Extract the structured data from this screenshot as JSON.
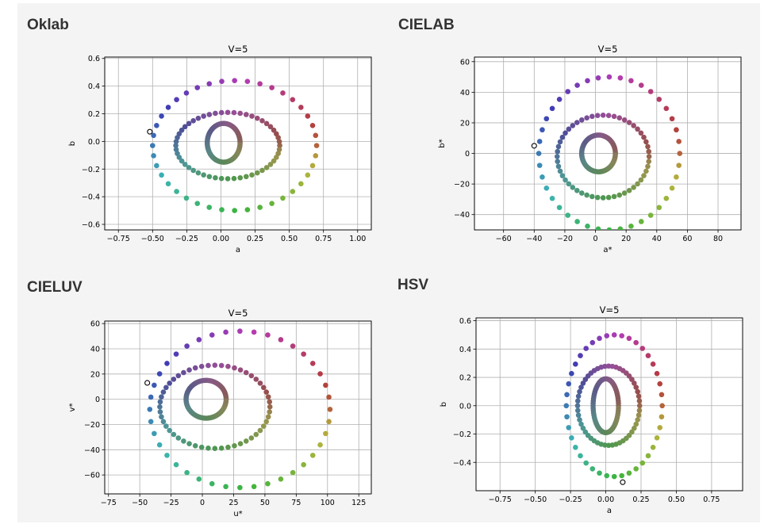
{
  "panel_titles": [
    "Oklab",
    "CIELAB",
    "CIELUV",
    "HSV"
  ],
  "chart_data": [
    {
      "type": "scatter",
      "title": "V=5",
      "xlabel": "a",
      "ylabel": "b",
      "xlim": [
        -0.85,
        1.1
      ],
      "ylim": [
        -0.64,
        0.61
      ],
      "xticks": [
        -0.75,
        -0.5,
        -0.25,
        0.0,
        0.25,
        0.5,
        0.75,
        1.0
      ],
      "xtick_labels": [
        "−0.75",
        "−0.50",
        "−0.25",
        "0.00",
        "0.25",
        "0.50",
        "0.75",
        "1.00"
      ],
      "yticks": [
        -0.6,
        -0.4,
        -0.2,
        0.0,
        0.2,
        0.4,
        0.6
      ],
      "ytick_labels": [
        "−0.6",
        "−0.4",
        "−0.2",
        "0.0",
        "0.2",
        "0.4",
        "0.6"
      ],
      "grid": true,
      "rings": [
        {
          "name": "inner",
          "center": [
            0.02,
            -0.01
          ],
          "radius_x": 0.12,
          "radius_y": 0.14,
          "count": 70
        },
        {
          "name": "middle",
          "center": [
            0.05,
            -0.03
          ],
          "radius_x": 0.38,
          "radius_y": 0.24,
          "count": 52
        },
        {
          "name": "outer",
          "center": [
            0.1,
            -0.03
          ],
          "radius_x": 0.6,
          "radius_y": 0.47,
          "count": 40
        }
      ],
      "highlight_point": [
        -0.52,
        0.07
      ]
    },
    {
      "type": "scatter",
      "title": "V=5",
      "xlabel": "a*",
      "ylabel": "b*",
      "xlim": [
        -79,
        95
      ],
      "ylim": [
        -50,
        63
      ],
      "xticks": [
        -60,
        -40,
        -20,
        0,
        20,
        40,
        60,
        80
      ],
      "xtick_labels": [
        "−60",
        "−40",
        "−20",
        "0",
        "20",
        "40",
        "60",
        "80"
      ],
      "yticks": [
        -40,
        -20,
        0,
        20,
        40,
        60
      ],
      "ytick_labels": [
        "−40",
        "−20",
        "0",
        "20",
        "40",
        "60"
      ],
      "grid": true,
      "rings": [
        {
          "name": "inner",
          "center": [
            2,
            0
          ],
          "radius_x": 11,
          "radius_y": 12,
          "count": 70
        },
        {
          "name": "middle",
          "center": [
            5,
            -2
          ],
          "radius_x": 30,
          "radius_y": 27,
          "count": 52
        },
        {
          "name": "outer",
          "center": [
            9,
            0
          ],
          "radius_x": 46,
          "radius_y": 50,
          "count": 40
        }
      ],
      "highlight_point": [
        -40,
        5
      ]
    },
    {
      "type": "scatter",
      "title": "V=5",
      "xlabel": "u*",
      "ylabel": "v*",
      "xlim": [
        -78,
        135
      ],
      "ylim": [
        -75,
        62
      ],
      "xticks": [
        -75,
        -50,
        -25,
        0,
        25,
        50,
        75,
        100,
        125
      ],
      "xtick_labels": [
        "−75",
        "−50",
        "−25",
        "0",
        "25",
        "50",
        "75",
        "100",
        "125"
      ],
      "yticks": [
        -60,
        -40,
        -20,
        0,
        20,
        40,
        60
      ],
      "ytick_labels": [
        "−60",
        "−40",
        "−20",
        "0",
        "20",
        "40",
        "60"
      ],
      "grid": true,
      "rings": [
        {
          "name": "inner",
          "center": [
            3,
            0
          ],
          "radius_x": 16,
          "radius_y": 15,
          "count": 70
        },
        {
          "name": "middle",
          "center": [
            10,
            -6
          ],
          "radius_x": 44,
          "radius_y": 33,
          "count": 52
        },
        {
          "name": "outer",
          "center": [
            30,
            -8
          ],
          "radius_x": 72,
          "radius_y": 62,
          "count": 40
        }
      ],
      "highlight_point": [
        -44,
        13
      ]
    },
    {
      "type": "scatter",
      "title": "V=5",
      "xlabel": "a",
      "ylabel": "b",
      "xlim": [
        -0.92,
        0.97
      ],
      "ylim": [
        -0.6,
        0.62
      ],
      "xticks": [
        -0.75,
        -0.5,
        -0.25,
        0.0,
        0.25,
        0.5,
        0.75
      ],
      "xtick_labels": [
        "−0.75",
        "−0.50",
        "−0.25",
        "0.00",
        "0.25",
        "0.50",
        "0.75"
      ],
      "yticks": [
        -0.4,
        -0.2,
        0.0,
        0.2,
        0.4,
        0.6
      ],
      "ytick_labels": [
        "−0.4",
        "−0.2",
        "0.0",
        "0.2",
        "0.4",
        "0.6"
      ],
      "grid": true,
      "rings": [
        {
          "name": "inner",
          "center": [
            0.0,
            0.0
          ],
          "radius_x": 0.09,
          "radius_y": 0.19,
          "count": 70
        },
        {
          "name": "middle",
          "center": [
            0.02,
            0.0
          ],
          "radius_x": 0.22,
          "radius_y": 0.28,
          "count": 52
        },
        {
          "name": "outer",
          "center": [
            0.06,
            0.0
          ],
          "radius_x": 0.34,
          "radius_y": 0.5,
          "count": 40
        }
      ],
      "highlight_point": [
        0.12,
        -0.54
      ]
    }
  ]
}
